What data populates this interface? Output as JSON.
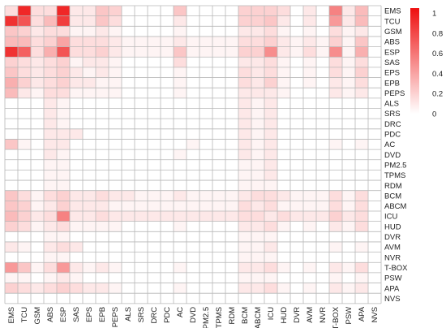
{
  "chart_data": {
    "type": "heatmap",
    "labels": [
      "EMS",
      "TCU",
      "GSM",
      "ABS",
      "ESP",
      "SAS",
      "EPS",
      "EPB",
      "PEPS",
      "ALS",
      "SRS",
      "DRC",
      "PDC",
      "AC",
      "DVD",
      "PM2.5",
      "TPMS",
      "RDM",
      "BCM",
      "ABCM",
      "ICU",
      "HUD",
      "DVR",
      "AVM",
      "NVR",
      "T-BOX",
      "PSW",
      "APA",
      "NVS"
    ],
    "colorbar": {
      "min": 0,
      "max": 1.05,
      "ticks": [
        "0",
        "0.2",
        "0.4",
        "0.6",
        "0.8",
        "1"
      ],
      "low_color": "#ffffff",
      "high_color": "#ee1010"
    },
    "grid": true,
    "legend": "right",
    "values": [
      [
        0.15,
        0.95,
        0.15,
        0.15,
        0.95,
        0.1,
        0.1,
        0.25,
        0.2,
        0.0,
        0.0,
        0.0,
        0.0,
        0.25,
        0.0,
        0.0,
        0.0,
        0.0,
        0.2,
        0.2,
        0.2,
        0.15,
        0.0,
        0.1,
        0.0,
        0.55,
        0.1,
        0.3,
        0.0
      ],
      [
        0.9,
        0.75,
        0.15,
        0.3,
        0.85,
        0.1,
        0.1,
        0.25,
        0.15,
        0.0,
        0.0,
        0.0,
        0.0,
        0.1,
        0.0,
        0.0,
        0.0,
        0.0,
        0.2,
        0.2,
        0.25,
        0.1,
        0.0,
        0.1,
        0.0,
        0.45,
        0.1,
        0.3,
        0.0
      ],
      [
        0.25,
        0.2,
        0.1,
        0.15,
        0.15,
        0.05,
        0.05,
        0.1,
        0.05,
        0.0,
        0.0,
        0.0,
        0.0,
        0.05,
        0.0,
        0.0,
        0.0,
        0.0,
        0.1,
        0.1,
        0.15,
        0.05,
        0.0,
        0.05,
        0.0,
        0.15,
        0.05,
        0.1,
        0.0
      ],
      [
        0.3,
        0.3,
        0.15,
        0.2,
        0.4,
        0.15,
        0.15,
        0.15,
        0.1,
        0.05,
        0.05,
        0.05,
        0.05,
        0.1,
        0.05,
        0.05,
        0.05,
        0.05,
        0.15,
        0.15,
        0.2,
        0.1,
        0.05,
        0.1,
        0.05,
        0.2,
        0.05,
        0.25,
        0.0
      ],
      [
        0.9,
        0.7,
        0.15,
        0.35,
        0.75,
        0.15,
        0.15,
        0.2,
        0.1,
        0.05,
        0.05,
        0.05,
        0.05,
        0.25,
        0.05,
        0.05,
        0.05,
        0.05,
        0.2,
        0.2,
        0.5,
        0.1,
        0.05,
        0.15,
        0.05,
        0.5,
        0.05,
        0.35,
        0.0
      ],
      [
        0.2,
        0.15,
        0.1,
        0.15,
        0.2,
        0.05,
        0.1,
        0.1,
        0.05,
        0.0,
        0.0,
        0.0,
        0.0,
        0.15,
        0.0,
        0.0,
        0.0,
        0.0,
        0.1,
        0.1,
        0.15,
        0.05,
        0.0,
        0.05,
        0.0,
        0.15,
        0.05,
        0.15,
        0.0
      ],
      [
        0.25,
        0.15,
        0.1,
        0.15,
        0.2,
        0.1,
        0.05,
        0.1,
        0.05,
        0.0,
        0.0,
        0.0,
        0.0,
        0.05,
        0.0,
        0.0,
        0.0,
        0.0,
        0.15,
        0.1,
        0.15,
        0.05,
        0.0,
        0.05,
        0.0,
        0.15,
        0.05,
        0.2,
        0.0
      ],
      [
        0.35,
        0.2,
        0.1,
        0.15,
        0.2,
        0.1,
        0.1,
        0.05,
        0.05,
        0.0,
        0.0,
        0.0,
        0.0,
        0.05,
        0.0,
        0.0,
        0.0,
        0.0,
        0.15,
        0.1,
        0.2,
        0.05,
        0.0,
        0.05,
        0.0,
        0.1,
        0.05,
        0.15,
        0.0
      ],
      [
        0.3,
        0.1,
        0.05,
        0.15,
        0.15,
        0.05,
        0.05,
        0.05,
        0.05,
        0.0,
        0.0,
        0.0,
        0.0,
        0.05,
        0.0,
        0.0,
        0.0,
        0.0,
        0.1,
        0.1,
        0.1,
        0.05,
        0.0,
        0.0,
        0.0,
        0.1,
        0.05,
        0.1,
        0.0
      ],
      [
        0.0,
        0.0,
        0.0,
        0.1,
        0.05,
        0.0,
        0.0,
        0.0,
        0.0,
        0.0,
        0.0,
        0.0,
        0.0,
        0.0,
        0.0,
        0.0,
        0.0,
        0.0,
        0.1,
        0.05,
        0.1,
        0.0,
        0.0,
        0.0,
        0.0,
        0.0,
        0.0,
        0.0,
        0.0
      ],
      [
        0.0,
        0.0,
        0.0,
        0.1,
        0.05,
        0.0,
        0.0,
        0.0,
        0.0,
        0.0,
        0.0,
        0.0,
        0.0,
        0.0,
        0.0,
        0.0,
        0.0,
        0.0,
        0.1,
        0.05,
        0.1,
        0.0,
        0.0,
        0.0,
        0.0,
        0.0,
        0.0,
        0.0,
        0.0
      ],
      [
        0.0,
        0.0,
        0.0,
        0.1,
        0.05,
        0.0,
        0.0,
        0.0,
        0.0,
        0.0,
        0.0,
        0.0,
        0.0,
        0.0,
        0.0,
        0.0,
        0.0,
        0.0,
        0.1,
        0.05,
        0.1,
        0.0,
        0.0,
        0.0,
        0.0,
        0.0,
        0.0,
        0.0,
        0.0
      ],
      [
        0.0,
        0.0,
        0.0,
        0.1,
        0.1,
        0.1,
        0.0,
        0.0,
        0.0,
        0.0,
        0.0,
        0.0,
        0.0,
        0.0,
        0.0,
        0.0,
        0.0,
        0.0,
        0.1,
        0.05,
        0.1,
        0.0,
        0.0,
        0.0,
        0.0,
        0.0,
        0.0,
        0.0,
        0.0
      ],
      [
        0.25,
        0.05,
        0.0,
        0.1,
        0.1,
        0.0,
        0.0,
        0.0,
        0.0,
        0.0,
        0.0,
        0.0,
        0.0,
        0.0,
        0.05,
        0.0,
        0.0,
        0.0,
        0.1,
        0.05,
        0.1,
        0.0,
        0.0,
        0.0,
        0.0,
        0.05,
        0.0,
        0.05,
        0.0
      ],
      [
        0.0,
        0.0,
        0.0,
        0.1,
        0.05,
        0.0,
        0.0,
        0.0,
        0.0,
        0.0,
        0.0,
        0.0,
        0.0,
        0.05,
        0.0,
        0.0,
        0.0,
        0.0,
        0.1,
        0.05,
        0.1,
        0.0,
        0.0,
        0.0,
        0.0,
        0.0,
        0.0,
        0.0,
        0.0
      ],
      [
        0.0,
        0.0,
        0.0,
        0.05,
        0.05,
        0.0,
        0.0,
        0.0,
        0.0,
        0.0,
        0.0,
        0.0,
        0.0,
        0.0,
        0.0,
        0.0,
        0.0,
        0.0,
        0.05,
        0.05,
        0.1,
        0.0,
        0.0,
        0.0,
        0.0,
        0.0,
        0.0,
        0.0,
        0.0
      ],
      [
        0.0,
        0.0,
        0.0,
        0.05,
        0.05,
        0.0,
        0.0,
        0.0,
        0.0,
        0.0,
        0.0,
        0.0,
        0.0,
        0.0,
        0.0,
        0.0,
        0.0,
        0.0,
        0.05,
        0.05,
        0.1,
        0.0,
        0.0,
        0.0,
        0.0,
        0.0,
        0.0,
        0.0,
        0.0
      ],
      [
        0.0,
        0.0,
        0.0,
        0.05,
        0.05,
        0.0,
        0.0,
        0.0,
        0.0,
        0.0,
        0.0,
        0.0,
        0.0,
        0.0,
        0.0,
        0.0,
        0.0,
        0.0,
        0.05,
        0.05,
        0.05,
        0.0,
        0.0,
        0.0,
        0.0,
        0.0,
        0.0,
        0.0,
        0.0
      ],
      [
        0.25,
        0.15,
        0.05,
        0.15,
        0.2,
        0.1,
        0.1,
        0.15,
        0.1,
        0.1,
        0.05,
        0.05,
        0.05,
        0.1,
        0.05,
        0.05,
        0.05,
        0.05,
        0.1,
        0.15,
        0.15,
        0.1,
        0.05,
        0.05,
        0.05,
        0.15,
        0.05,
        0.15,
        0.0
      ],
      [
        0.25,
        0.2,
        0.05,
        0.1,
        0.2,
        0.1,
        0.1,
        0.1,
        0.05,
        0.05,
        0.05,
        0.05,
        0.05,
        0.05,
        0.05,
        0.05,
        0.05,
        0.05,
        0.15,
        0.1,
        0.15,
        0.05,
        0.05,
        0.05,
        0.05,
        0.15,
        0.05,
        0.15,
        0.0
      ],
      [
        0.3,
        0.2,
        0.1,
        0.15,
        0.55,
        0.1,
        0.1,
        0.15,
        0.1,
        0.1,
        0.1,
        0.1,
        0.1,
        0.1,
        0.1,
        0.1,
        0.1,
        0.1,
        0.15,
        0.15,
        0.1,
        0.15,
        0.1,
        0.1,
        0.1,
        0.2,
        0.1,
        0.15,
        0.0
      ],
      [
        0.2,
        0.15,
        0.05,
        0.1,
        0.15,
        0.05,
        0.05,
        0.05,
        0.05,
        0.0,
        0.0,
        0.0,
        0.0,
        0.05,
        0.0,
        0.0,
        0.0,
        0.0,
        0.1,
        0.1,
        0.15,
        0.05,
        0.0,
        0.05,
        0.0,
        0.1,
        0.05,
        0.15,
        0.0
      ],
      [
        0.0,
        0.0,
        0.0,
        0.05,
        0.05,
        0.0,
        0.0,
        0.0,
        0.0,
        0.0,
        0.0,
        0.0,
        0.0,
        0.0,
        0.0,
        0.0,
        0.0,
        0.0,
        0.05,
        0.05,
        0.05,
        0.0,
        0.0,
        0.0,
        0.0,
        0.0,
        0.0,
        0.0,
        0.0
      ],
      [
        0.1,
        0.05,
        0.0,
        0.1,
        0.15,
        0.1,
        0.0,
        0.0,
        0.0,
        0.0,
        0.0,
        0.0,
        0.0,
        0.0,
        0.0,
        0.0,
        0.0,
        0.0,
        0.05,
        0.05,
        0.1,
        0.0,
        0.0,
        0.0,
        0.0,
        0.05,
        0.0,
        0.05,
        0.0
      ],
      [
        0.0,
        0.0,
        0.0,
        0.05,
        0.05,
        0.0,
        0.0,
        0.0,
        0.0,
        0.0,
        0.0,
        0.0,
        0.0,
        0.0,
        0.0,
        0.0,
        0.0,
        0.0,
        0.05,
        0.05,
        0.05,
        0.0,
        0.0,
        0.0,
        0.0,
        0.0,
        0.0,
        0.0,
        0.0
      ],
      [
        0.45,
        0.25,
        0.05,
        0.15,
        0.45,
        0.1,
        0.05,
        0.1,
        0.05,
        0.0,
        0.0,
        0.0,
        0.0,
        0.05,
        0.0,
        0.0,
        0.0,
        0.0,
        0.1,
        0.1,
        0.15,
        0.05,
        0.0,
        0.05,
        0.0,
        0.1,
        0.05,
        0.15,
        0.0
      ],
      [
        0.05,
        0.05,
        0.0,
        0.05,
        0.1,
        0.05,
        0.0,
        0.0,
        0.0,
        0.0,
        0.0,
        0.0,
        0.0,
        0.0,
        0.0,
        0.0,
        0.0,
        0.0,
        0.05,
        0.05,
        0.05,
        0.0,
        0.0,
        0.0,
        0.0,
        0.05,
        0.0,
        0.05,
        0.0
      ],
      [
        0.2,
        0.15,
        0.1,
        0.15,
        0.2,
        0.15,
        0.1,
        0.1,
        0.05,
        0.0,
        0.0,
        0.0,
        0.0,
        0.05,
        0.0,
        0.0,
        0.0,
        0.0,
        0.1,
        0.1,
        0.15,
        0.05,
        0.0,
        0.05,
        0.0,
        0.1,
        0.05,
        0.1,
        0.0
      ],
      [
        0.0,
        0.0,
        0.0,
        0.0,
        0.0,
        0.0,
        0.0,
        0.0,
        0.0,
        0.0,
        0.0,
        0.0,
        0.0,
        0.0,
        0.0,
        0.0,
        0.0,
        0.0,
        0.0,
        0.0,
        0.0,
        0.0,
        0.0,
        0.0,
        0.0,
        0.0,
        0.0,
        0.0,
        0.0
      ]
    ]
  }
}
